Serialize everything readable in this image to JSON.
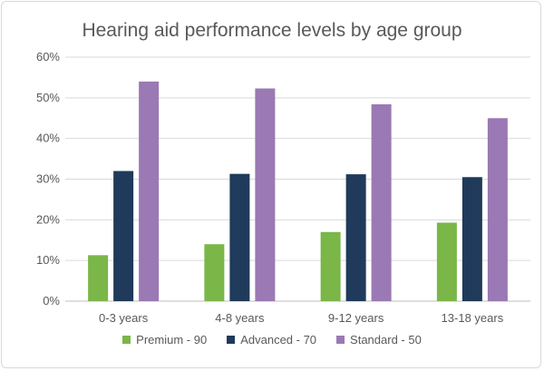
{
  "chart_data": {
    "type": "bar",
    "title": "Hearing aid performance levels by age group",
    "categories": [
      "0-3 years",
      "4-8 years",
      "9-12 years",
      "13-18 years"
    ],
    "series": [
      {
        "name": "Premium - 90",
        "color": "#7ab648",
        "values": [
          11.3,
          14.0,
          17.0,
          19.3
        ]
      },
      {
        "name": "Advanced - 70",
        "color": "#1f3a5a",
        "values": [
          32.0,
          31.3,
          31.2,
          30.5
        ]
      },
      {
        "name": "Standard - 50",
        "color": "#9b79b4",
        "values": [
          54.0,
          52.3,
          48.4,
          45.0
        ]
      }
    ],
    "y_ticks": [
      "0%",
      "10%",
      "20%",
      "30%",
      "40%",
      "50%",
      "60%"
    ],
    "ylim": [
      0,
      60
    ],
    "ylabel": "",
    "xlabel": "",
    "grid": true,
    "legend_position": "bottom"
  }
}
